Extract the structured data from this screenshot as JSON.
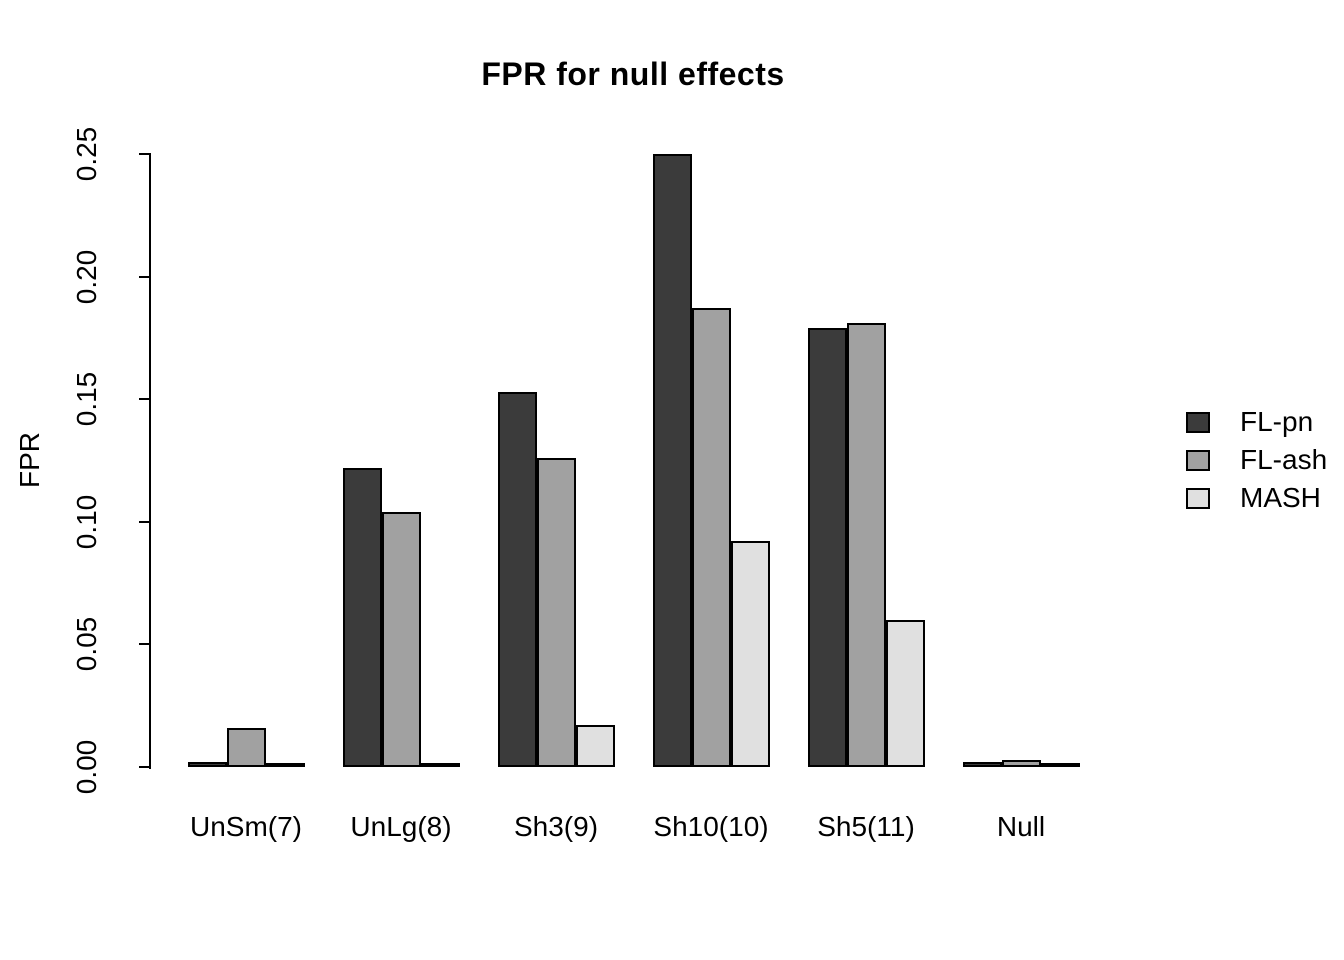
{
  "chart_data": {
    "type": "bar",
    "title": "FPR for null effects",
    "xlabel": "",
    "ylabel": "FPR",
    "categories": [
      "UnSm(7)",
      "UnLg(8)",
      "Sh3(9)",
      "Sh10(10)",
      "Sh5(11)",
      "Null"
    ],
    "series": [
      {
        "name": "FL-pn",
        "color": "#3B3B3B",
        "values": [
          0.002,
          0.122,
          0.153,
          0.25,
          0.179,
          0.002
        ]
      },
      {
        "name": "FL-ash",
        "color": "#A1A1A1",
        "values": [
          0.016,
          0.104,
          0.126,
          0.187,
          0.181,
          0.003
        ]
      },
      {
        "name": "MASH",
        "color": "#E0E0E0",
        "values": [
          0.0,
          0.0,
          0.017,
          0.092,
          0.06,
          0.0
        ]
      }
    ],
    "ylim": [
      0,
      0.25
    ],
    "yticks": [
      "0.00",
      "0.05",
      "0.10",
      "0.15",
      "0.20",
      "0.25"
    ],
    "grid": false,
    "legend_position": "right",
    "bar_border_color": "#000000",
    "background_color": "#FFFFFF"
  }
}
